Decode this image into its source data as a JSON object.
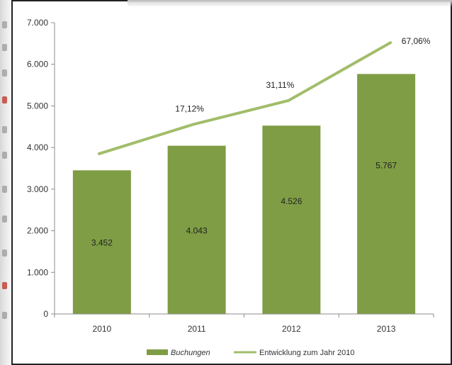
{
  "chart_data": {
    "type": "bar",
    "categories": [
      "2010",
      "2011",
      "2012",
      "2013"
    ],
    "series": [
      {
        "name": "Buchungen",
        "type": "bar",
        "values": [
          3452,
          4043,
          4526,
          5767
        ],
        "labels": [
          "3.452",
          "4.043",
          "4.526",
          "5.767"
        ],
        "color": "#7f9d45"
      },
      {
        "name": "Entwicklung zum Jahr 2010",
        "type": "line",
        "y_values": [
          3850,
          4560,
          5130,
          6520
        ],
        "labels": [
          "",
          "17,12%",
          "31,11%",
          "67,06%"
        ],
        "color": "#a2bd6a"
      }
    ],
    "yticks": [
      "0",
      "1.000",
      "2.000",
      "3.000",
      "4.000",
      "5.000",
      "6.000",
      "7.000"
    ],
    "ylim": [
      0,
      7000
    ],
    "grid": false,
    "legend_position": "bottom",
    "title": "",
    "xlabel": "",
    "ylabel": ""
  }
}
